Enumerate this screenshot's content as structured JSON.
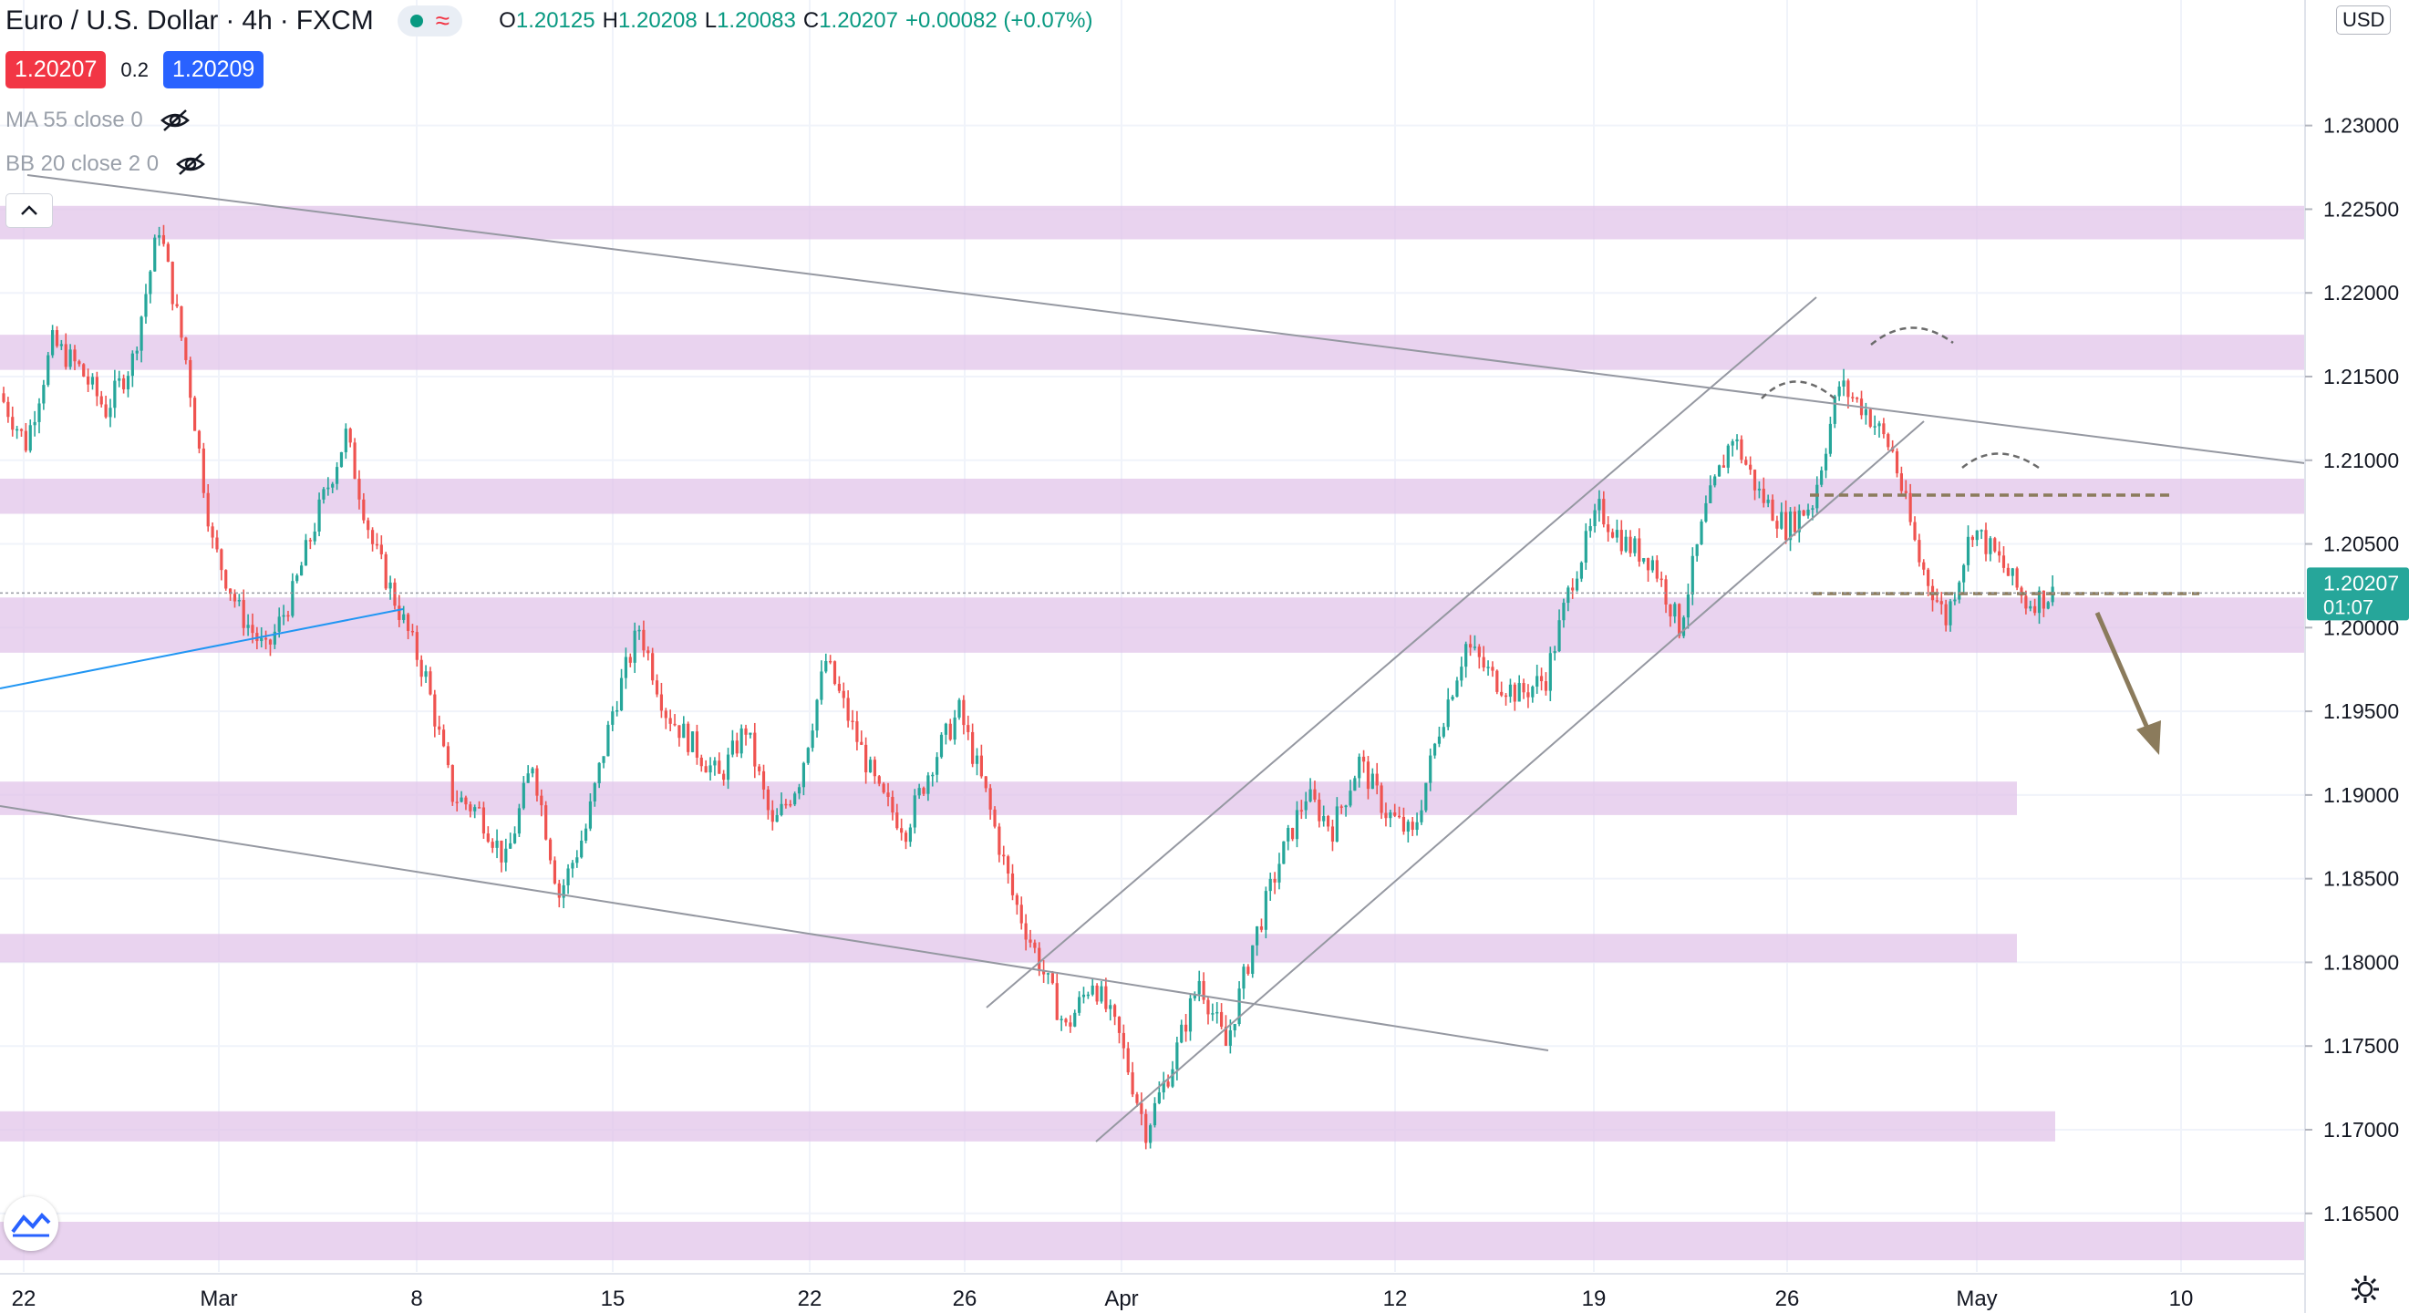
{
  "header": {
    "symbol": "Euro / U.S. Dollar",
    "interval": "4h",
    "source": "FXCM",
    "ohlc": {
      "open_label": "O",
      "open": "1.20125",
      "high_label": "H",
      "high": "1.20208",
      "low_label": "L",
      "low": "1.20083",
      "close_label": "C",
      "close": "1.20207",
      "change": "+0.00082 (+0.07%)"
    }
  },
  "prices": {
    "bid": "1.20207",
    "spread": "0.2",
    "ask": "1.20209"
  },
  "indicators": [
    {
      "label": "MA 55 close 0"
    },
    {
      "label": "BB 20 close 2 0"
    }
  ],
  "currency": "USD",
  "colors": {
    "up": "#26a69a",
    "down": "#ef5350",
    "zone": "#e1c4e9",
    "last_price": "#26a69a",
    "arrow": "#8b7b5c",
    "accent_blue": "#2962ff"
  },
  "chart_data": {
    "type": "candlestick",
    "x": [
      "Feb 22",
      "Mar",
      "8",
      "15",
      "22",
      "26",
      "Apr",
      "12",
      "19",
      "26",
      "May",
      "10"
    ],
    "ylim": [
      1.1615,
      1.2375
    ],
    "yticks": [
      "1.16500",
      "1.17000",
      "1.17500",
      "1.18000",
      "1.18500",
      "1.19000",
      "1.19500",
      "1.20000",
      "1.20500",
      "1.21000",
      "1.21500",
      "1.22000",
      "1.22500",
      "1.23000"
    ],
    "tick_labels": [
      "22",
      "Mar",
      "8",
      "15",
      "22",
      "26",
      "Apr",
      "12",
      "19",
      "26",
      "May",
      "10"
    ],
    "last_price": "1.20207",
    "countdown": "01:07",
    "path": [
      1.214,
      1.211,
      1.217,
      1.2155,
      1.213,
      1.216,
      1.224,
      1.216,
      1.205,
      1.201,
      1.1985,
      1.202,
      1.207,
      1.2115,
      1.205,
      1.201,
      1.197,
      1.19,
      1.189,
      1.186,
      1.192,
      1.184,
      1.188,
      1.195,
      1.2,
      1.195,
      1.193,
      1.191,
      1.194,
      1.188,
      1.191,
      1.198,
      1.194,
      1.19,
      1.188,
      1.192,
      1.195,
      1.19,
      1.184,
      1.18,
      1.176,
      1.179,
      1.1755,
      1.17,
      1.174,
      1.179,
      1.175,
      1.181,
      1.186,
      1.19,
      1.188,
      1.192,
      1.189,
      1.1875,
      1.194,
      1.199,
      1.197,
      1.196,
      1.197,
      1.203,
      1.207,
      1.205,
      1.204,
      1.2,
      1.207,
      1.2115,
      1.208,
      1.206,
      1.2075,
      1.2145,
      1.213,
      1.2105,
      1.204,
      1.2005,
      1.206,
      1.204,
      1.2015,
      1.202
    ]
  },
  "zones": [
    {
      "from": 1.2232,
      "to": 1.2252,
      "extent": "full"
    },
    {
      "from": 1.2154,
      "to": 1.2175,
      "extent": "full"
    },
    {
      "from": 1.2068,
      "to": 1.2089,
      "extent": "full"
    },
    {
      "from": 1.1985,
      "to": 1.2018,
      "extent": "full"
    },
    {
      "from": 1.1888,
      "to": 1.1908,
      "extent": "partial"
    },
    {
      "from": 1.18,
      "to": 1.1817,
      "extent": "partial"
    },
    {
      "from": 1.1693,
      "to": 1.1711,
      "extent": "partial2"
    },
    {
      "from": 1.1622,
      "to": 1.1645,
      "extent": "full"
    }
  ]
}
